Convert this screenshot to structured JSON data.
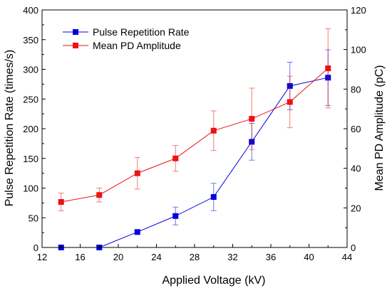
{
  "chart_data": {
    "type": "line",
    "title": "",
    "xlabel": "Applied Voltage (kV)",
    "ylabel_left": "Pulse Repetition Rate (times/s)",
    "ylabel_right": "Mean PD Amplitude (pC)",
    "xlim": [
      12,
      44
    ],
    "ylim_left": [
      0,
      400
    ],
    "ylim_right": [
      0,
      120
    ],
    "xticks": [
      "12",
      "16",
      "20",
      "24",
      "28",
      "32",
      "36",
      "40",
      "44"
    ],
    "yticks_left": [
      "0",
      "50",
      "100",
      "150",
      "200",
      "250",
      "300",
      "350",
      "400"
    ],
    "yticks_right": [
      "0",
      "20",
      "40",
      "60",
      "80",
      "100",
      "120"
    ],
    "grid": false,
    "legend_position": "top-left",
    "series": [
      {
        "name": "Pulse Repetition Rate",
        "axis": "left",
        "color": "#0000dd",
        "marker": "square",
        "x": [
          14,
          18,
          22,
          26,
          30,
          34,
          38,
          42
        ],
        "y": [
          0,
          0,
          26,
          53,
          85,
          178,
          272,
          286
        ],
        "err": [
          0,
          0,
          0,
          15,
          23,
          31,
          40,
          47
        ]
      },
      {
        "name": "Mean PD Amplitude",
        "axis": "right",
        "color": "#ee1111",
        "marker": "square",
        "x": [
          14,
          18,
          22,
          26,
          30,
          34,
          38,
          42
        ],
        "y": [
          23,
          26.5,
          37.5,
          45,
          59,
          65,
          73.5,
          90.5
        ],
        "err": [
          4.5,
          3.5,
          8,
          6.5,
          10,
          15.5,
          13,
          20
        ]
      }
    ]
  }
}
